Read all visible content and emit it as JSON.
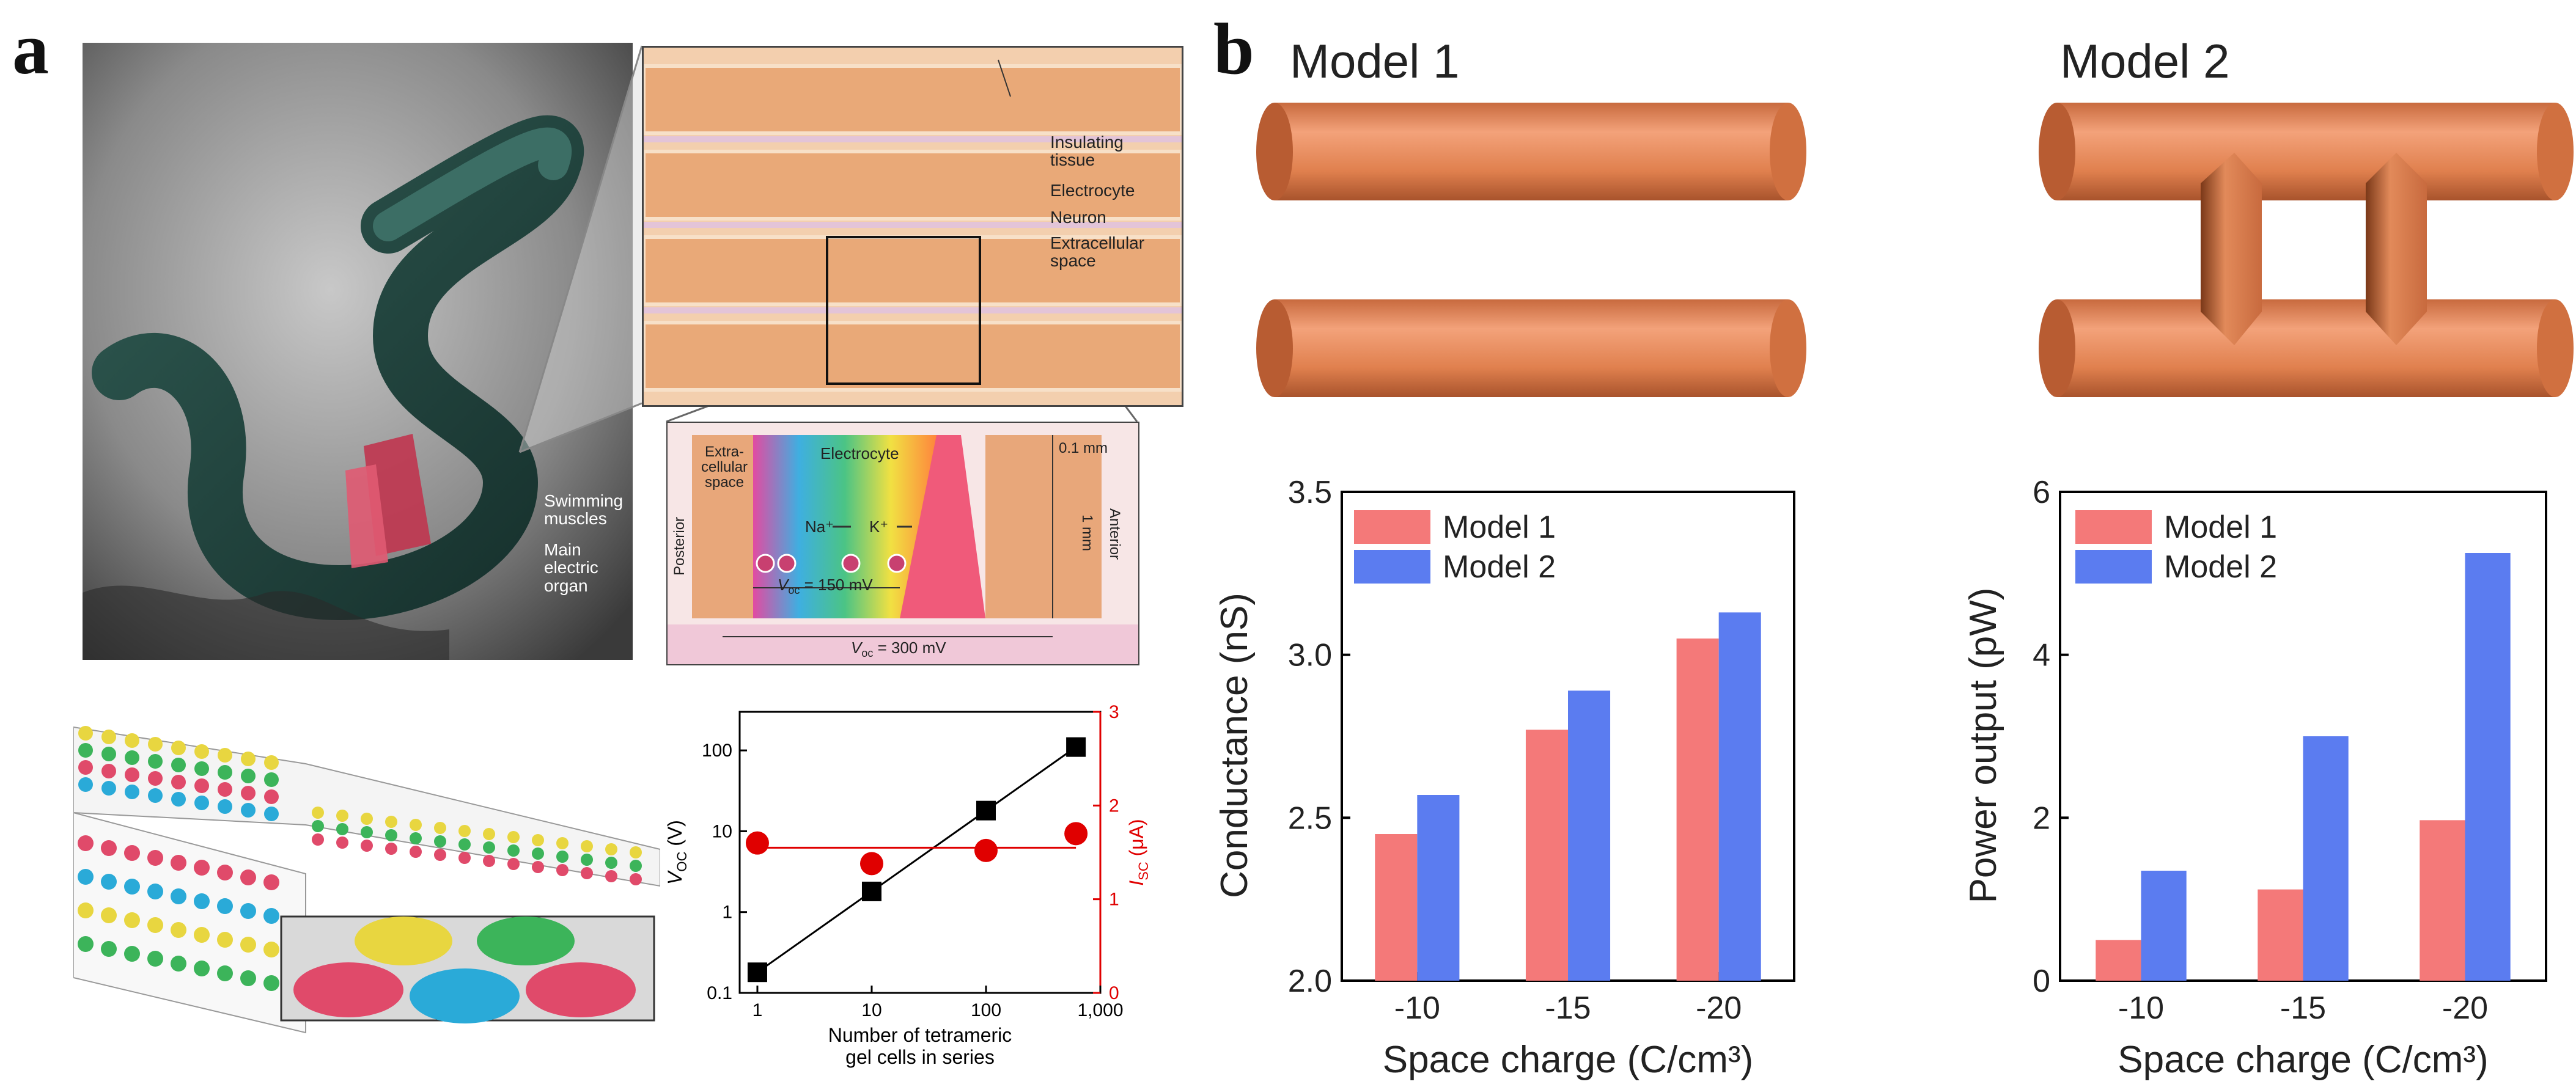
{
  "panels": {
    "a": {
      "letter": "a",
      "eel_labels": {
        "swimming": "Swimming\nmuscles",
        "organ": "Main\nelectric\norgan"
      },
      "tissue_labels": {
        "insulating": "Insulating\ntissue",
        "electrocyte": "Electrocyte",
        "neuron": "Neuron",
        "extracellular": "Extracellular\nspace"
      },
      "cell_labels": {
        "extracellular": "Extra-\ncellular\nspace",
        "electrocyte": "Electrocyte",
        "scale": "0.1 mm",
        "height": "1 mm",
        "posterior": "Posterior",
        "anterior": "Anterior",
        "na": "Na⁺",
        "k": "K⁺",
        "voc150": "V",
        "voc150_sub": "oc",
        "voc150_val": " = 150 mV",
        "voc300": "V",
        "voc300_sub": "oc",
        "voc300_val": " = 300 mV"
      }
    },
    "b": {
      "letter": "b",
      "model1_title": "Model 1",
      "model2_title": "Model 2"
    }
  },
  "chart_data": [
    {
      "type": "scatter",
      "xlabel": "Number of tetrameric gel cells in series",
      "ylabel_left": "V_OC (V)",
      "ylabel_right": "I_SC (μA)",
      "x_scale": "log",
      "y_left_scale": "log",
      "xlim": [
        0.7,
        1000
      ],
      "ylim_left": [
        0.1,
        300
      ],
      "ylim_right": [
        0,
        3
      ],
      "x_ticks": [
        "1",
        "10",
        "100",
        "1,000"
      ],
      "y_left_ticks": [
        "0.1",
        "1",
        "10",
        "100"
      ],
      "y_right_ticks": [
        "0",
        "1",
        "2",
        "3"
      ],
      "series": [
        {
          "axis": "left",
          "marker": "square",
          "color": "#000000",
          "x": [
            1,
            10,
            100,
            612
          ],
          "y": [
            0.18,
            1.8,
            18,
            110
          ]
        },
        {
          "axis": "right",
          "marker": "circle",
          "color": "#e00000",
          "x": [
            1,
            10,
            100,
            612
          ],
          "y": [
            1.6,
            1.38,
            1.52,
            1.7
          ],
          "fit": 1.55
        }
      ]
    },
    {
      "type": "bar",
      "categories": [
        "-10",
        "-15",
        "-20"
      ],
      "xlabel": "Space charge (C/cm³)",
      "ylabel": "Conductance (nS)",
      "ylim": [
        2.0,
        3.5
      ],
      "yticks": [
        "2.0",
        "2.5",
        "3.0",
        "3.5"
      ],
      "series": [
        {
          "name": "Model 1",
          "color": "#f47979",
          "values": [
            2.45,
            2.77,
            3.05
          ]
        },
        {
          "name": "Model 2",
          "color": "#5b7cf0",
          "values": [
            2.57,
            2.89,
            3.13
          ]
        }
      ]
    },
    {
      "type": "bar",
      "categories": [
        "-10",
        "-15",
        "-20"
      ],
      "xlabel": "Space charge (C/cm³)",
      "ylabel": "Power output (pW)",
      "ylim": [
        0,
        6
      ],
      "yticks": [
        "0",
        "2",
        "4",
        "6"
      ],
      "series": [
        {
          "name": "Model 1",
          "color": "#f47979",
          "values": [
            0.5,
            1.12,
            1.97
          ]
        },
        {
          "name": "Model 2",
          "color": "#5b7cf0",
          "values": [
            1.35,
            3.0,
            5.25
          ]
        }
      ]
    }
  ]
}
